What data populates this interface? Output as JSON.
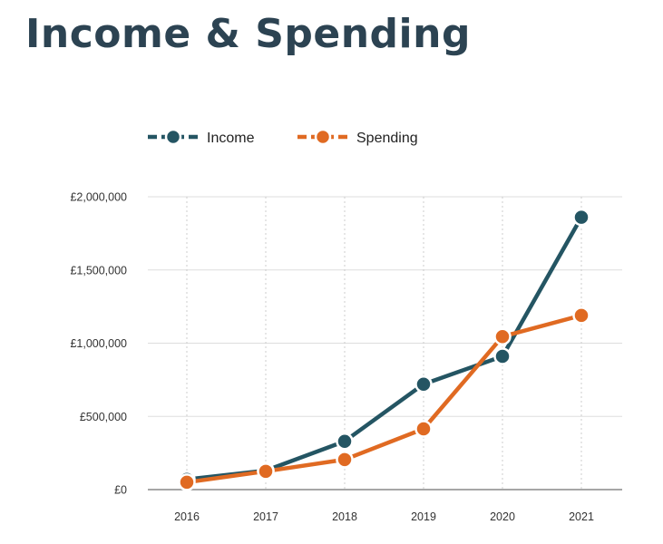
{
  "title": "Income & Spending",
  "chart_data": {
    "type": "line",
    "categories": [
      "2016",
      "2017",
      "2018",
      "2019",
      "2020",
      "2021"
    ],
    "series": [
      {
        "name": "Income",
        "values": [
          70000,
          130000,
          330000,
          720000,
          910000,
          1860000
        ],
        "color": "#245563"
      },
      {
        "name": "Spending",
        "values": [
          50000,
          125000,
          205000,
          415000,
          1045000,
          1190000
        ],
        "color": "#e06a22"
      }
    ],
    "ylim": [
      0,
      2000000
    ],
    "yticks": [
      0,
      500000,
      1000000,
      1500000,
      2000000
    ],
    "ytick_labels": [
      "£0",
      "£500,000",
      "£1,000,000",
      "£1,500,000",
      "£2,000,000"
    ],
    "legend_position": "top-left",
    "grid": true
  }
}
